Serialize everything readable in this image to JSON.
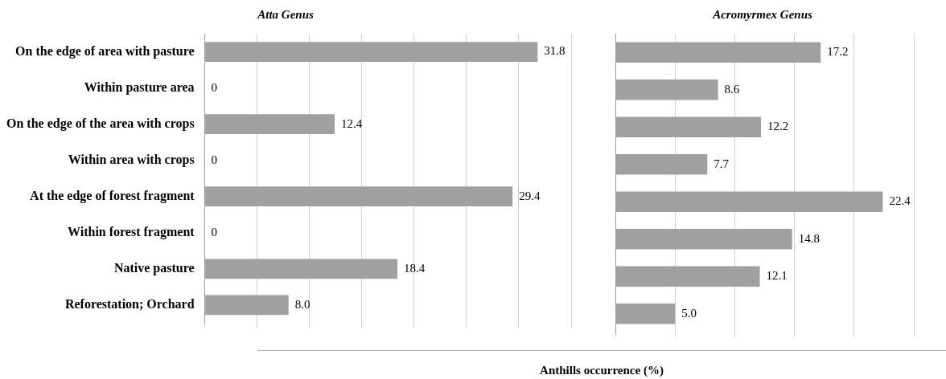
{
  "chart_data": [
    {
      "type": "bar",
      "orientation": "horizontal",
      "title": "Atta Genus",
      "xlabel": "Anthills occurrence (%)",
      "categories": [
        "On the edge of area with pasture",
        "Within pasture area",
        "On the edge of the area with crops",
        "Within area with crops",
        "At the edge of forest fragment",
        "Within forest fragment",
        "Native pasture",
        "Reforestation; Orchard"
      ],
      "values": [
        31.8,
        0,
        12.4,
        0,
        29.4,
        0,
        18.4,
        8.0
      ],
      "value_labels": [
        "31.8",
        "0",
        "12.4",
        "0",
        "29.4",
        "0",
        "18.4",
        "8.0"
      ],
      "color": "#a0a0a0",
      "xlim": [
        0,
        35
      ],
      "xticks": [
        {
          "value": 0,
          "label": null
        },
        {
          "value": 5,
          "label": null
        },
        {
          "value": 10,
          "label": null
        },
        {
          "value": 15,
          "label": null
        },
        {
          "value": 20,
          "label": null
        },
        {
          "value": 25,
          "label": null
        },
        {
          "value": 30,
          "label": null
        },
        {
          "value": 35,
          "label": null
        }
      ],
      "tick_labels": "y",
      "grid": "x"
    },
    {
      "type": "bar",
      "orientation": "horizontal",
      "title": "Acromyrmex Genus",
      "categories": [
        null,
        null,
        null,
        null,
        null,
        null,
        null,
        null
      ],
      "values": [
        17.2,
        8.6,
        12.2,
        7.7,
        22.4,
        14.8,
        12.1,
        5.0
      ],
      "value_labels": [
        "17.2",
        "8.6",
        "12.2",
        "7.7",
        "22.4",
        "14.8",
        "12.1",
        "5.0"
      ],
      "color": "#a0a0a0",
      "xlim": [
        0,
        25
      ],
      "xticks": [
        {
          "value": 0,
          "label": null
        },
        {
          "value": 5,
          "label": null
        },
        {
          "value": 10,
          "label": null
        },
        {
          "value": 15,
          "label": null
        },
        {
          "value": 20,
          "label": null
        },
        {
          "value": 25,
          "label": null
        }
      ],
      "tick_labels": false,
      "grid": "x"
    }
  ]
}
